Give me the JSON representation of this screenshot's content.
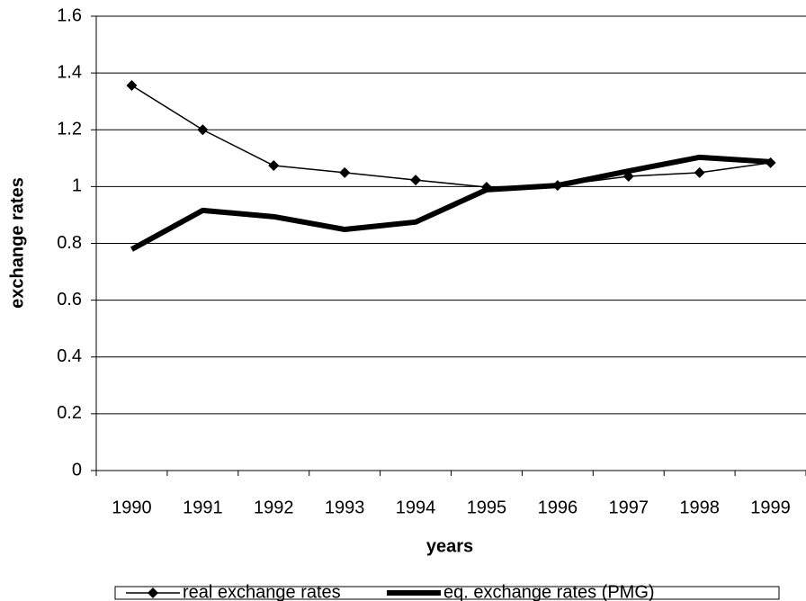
{
  "chart_data": {
    "type": "line",
    "x_label": "years",
    "y_label": "exchange rates",
    "categories": [
      "1990",
      "1991",
      "1992",
      "1993",
      "1994",
      "1995",
      "1996",
      "1997",
      "1998",
      "1999"
    ],
    "series": [
      {
        "name": "real exchange rates",
        "color": "#000000",
        "values": [
          1.356,
          1.2,
          1.074,
          1.049,
          1.023,
          0.998,
          1.004,
          1.036,
          1.049,
          1.084
        ]
      },
      {
        "name": "eq. exchange rates (PMG)",
        "color": "#000000",
        "values": [
          0.779,
          0.916,
          0.894,
          0.849,
          0.875,
          0.989,
          1.004,
          1.055,
          1.103,
          1.087
        ]
      }
    ],
    "ylim": [
      0,
      1.6
    ],
    "yticks": [
      0,
      0.2,
      0.4,
      0.6,
      0.8,
      1,
      1.2,
      1.4,
      1.6
    ],
    "grid": true
  }
}
